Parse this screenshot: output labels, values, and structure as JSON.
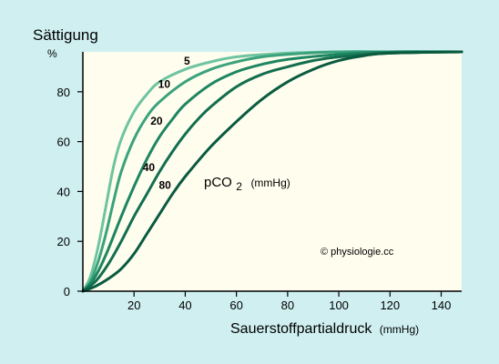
{
  "page": {
    "background": "#cfeff1",
    "plot_background": "#fefdee"
  },
  "chart_data": {
    "type": "line",
    "ylabel": "Sättigung",
    "yunit": "%",
    "xlabel": "Sauerstoffpartialdruck",
    "xunit": "(mmHg)",
    "xlim": [
      0,
      148
    ],
    "ylim": [
      0,
      96
    ],
    "xticks": [
      20,
      40,
      60,
      80,
      100,
      120,
      140
    ],
    "yticks": [
      0,
      20,
      40,
      60,
      80
    ],
    "grid": false,
    "annotation_main": "pCO",
    "annotation_sub": "2",
    "annotation_unit": "(mmHg)",
    "copyright": "© physiologie.cc",
    "series": [
      {
        "name": "5",
        "color": "#6fc4a0",
        "x": [
          0,
          3,
          6,
          9,
          12,
          15,
          20,
          25,
          30,
          40,
          50,
          60,
          80,
          100,
          120,
          148
        ],
        "y": [
          0,
          6,
          18,
          34,
          50,
          61,
          72,
          79,
          84,
          89,
          92,
          94,
          95.5,
          96,
          96,
          96
        ]
      },
      {
        "name": "10",
        "color": "#3aa27c",
        "x": [
          0,
          3,
          6,
          9,
          12,
          15,
          20,
          25,
          30,
          40,
          50,
          60,
          70,
          80,
          100,
          120,
          148
        ],
        "y": [
          0,
          4,
          12,
          23,
          36,
          48,
          61,
          70,
          76,
          84,
          89,
          92,
          94,
          95,
          96,
          96,
          96
        ]
      },
      {
        "name": "20",
        "color": "#1e8561",
        "x": [
          0,
          3,
          6,
          10,
          15,
          20,
          25,
          30,
          35,
          40,
          50,
          60,
          70,
          80,
          100,
          120,
          148
        ],
        "y": [
          0,
          3,
          8,
          17,
          30,
          42,
          53,
          62,
          69,
          75,
          83,
          88,
          91,
          93,
          95,
          96,
          96
        ]
      },
      {
        "name": "40",
        "color": "#136e4f",
        "x": [
          0,
          5,
          10,
          15,
          20,
          25,
          30,
          35,
          40,
          45,
          50,
          60,
          70,
          80,
          90,
          100,
          120,
          148
        ],
        "y": [
          0,
          4,
          11,
          20,
          30,
          39,
          48,
          56,
          63,
          69,
          74,
          82,
          87,
          90,
          92.5,
          94,
          95.5,
          96
        ]
      },
      {
        "name": "80",
        "color": "#0a5a40",
        "x": [
          0,
          5,
          10,
          15,
          20,
          25,
          30,
          35,
          40,
          50,
          60,
          70,
          80,
          90,
          100,
          110,
          120,
          148
        ],
        "y": [
          0,
          2,
          5,
          9,
          15,
          23,
          31,
          39,
          46,
          58,
          68,
          77,
          84,
          89,
          92.5,
          94.5,
          95.5,
          96
        ]
      }
    ]
  }
}
